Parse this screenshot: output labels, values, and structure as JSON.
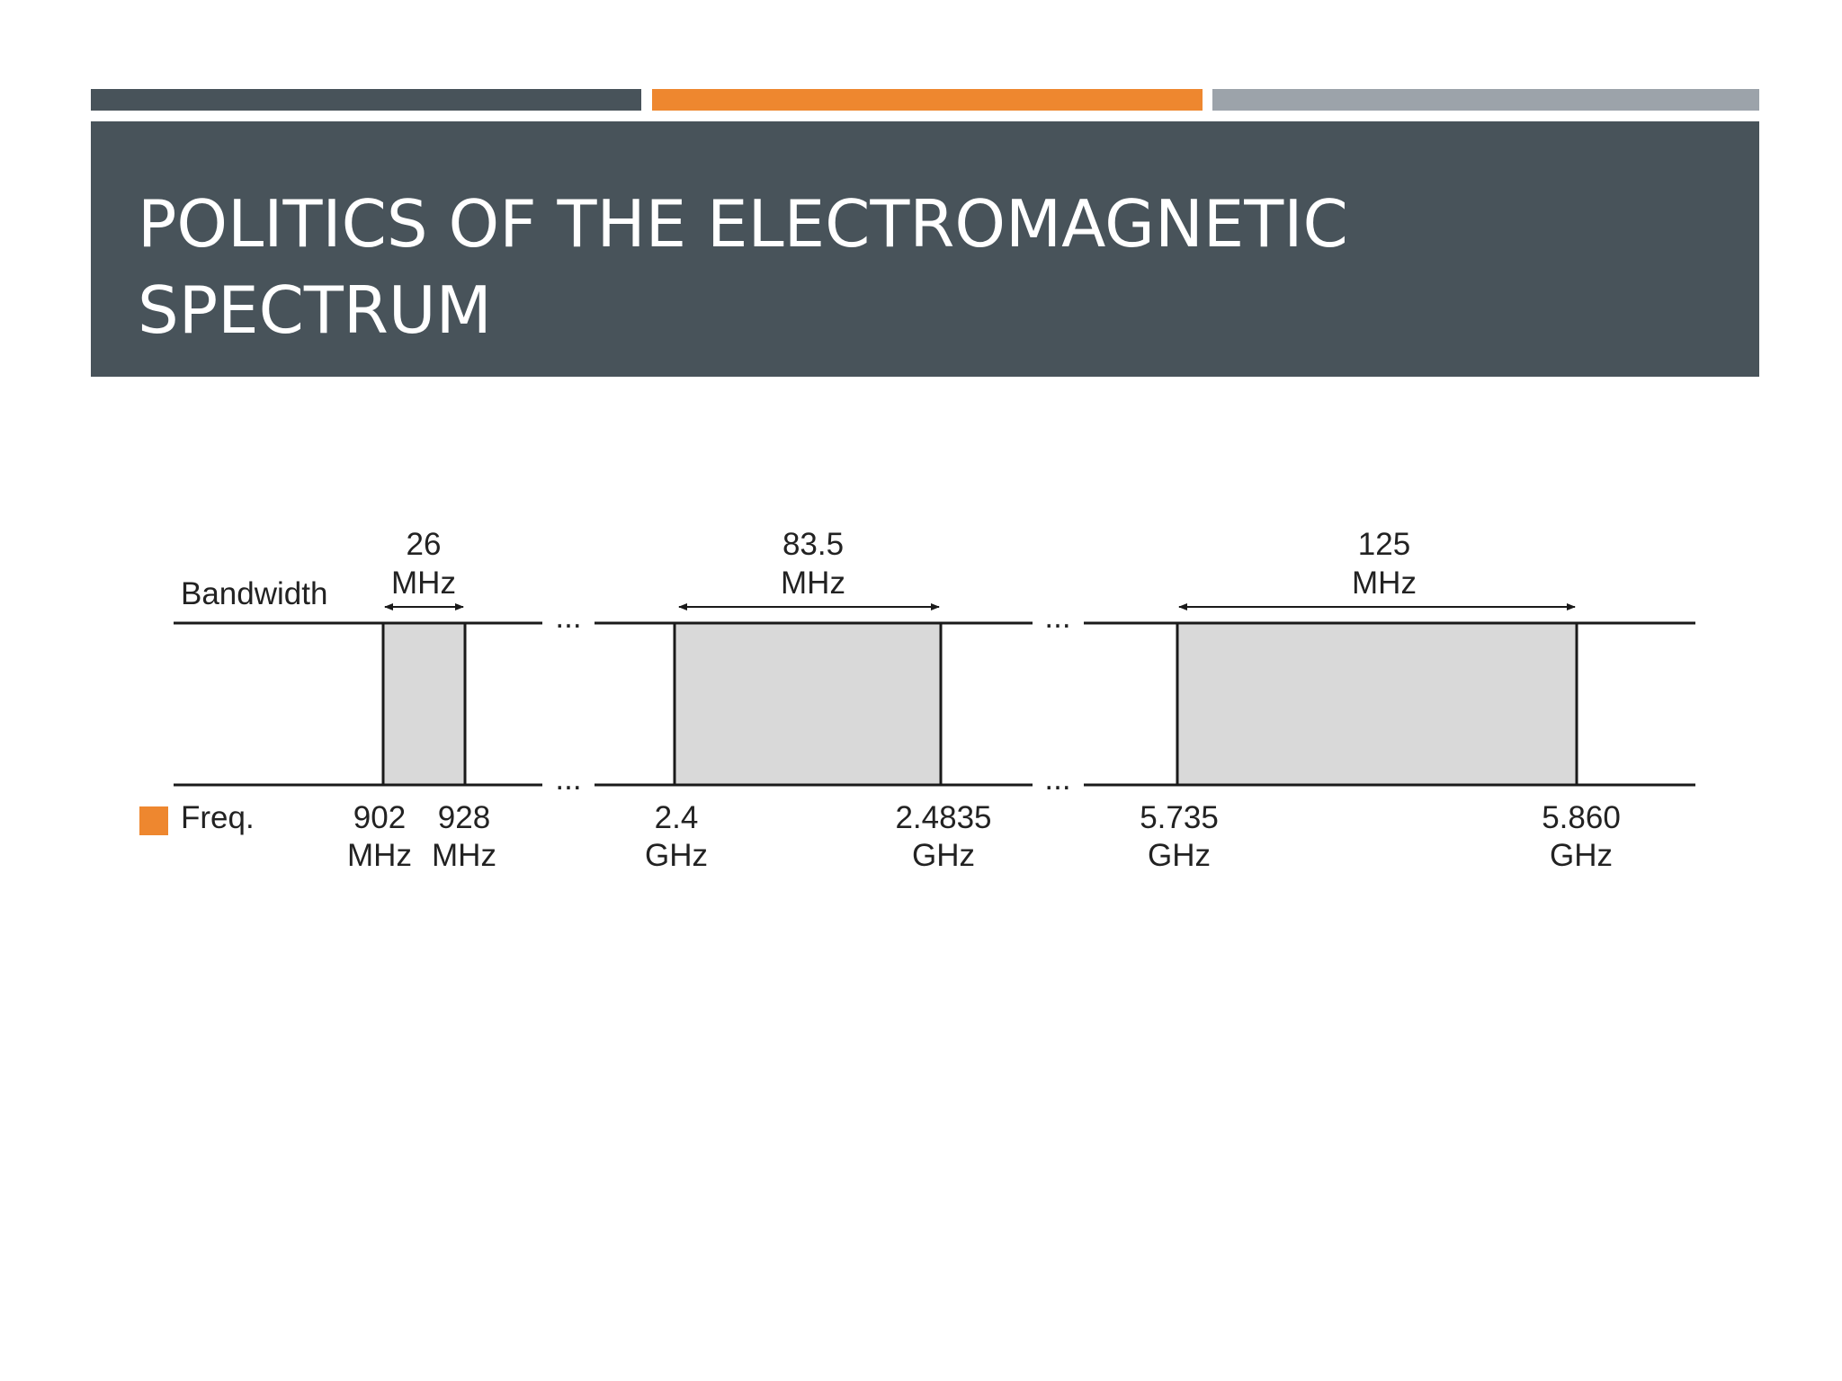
{
  "header": {
    "title": "POLITICS OF THE ELECTROMAGNETIC SPECTRUM"
  },
  "colors": {
    "dark_slate": "#48535a",
    "accent_orange": "#ee872f",
    "light_gray": "#9ca3aa",
    "band_fill": "#d9d9d9",
    "line": "#1a1a1a"
  },
  "diagram": {
    "row_labels": {
      "bandwidth": "Bandwidth",
      "frequency": "Freq."
    },
    "ellipsis": "...",
    "bands": [
      {
        "bandwidth": "26",
        "bandwidth_unit": "MHz",
        "start": "902",
        "start_unit": "MHz",
        "end": "928",
        "end_unit": "MHz"
      },
      {
        "bandwidth": "83.5",
        "bandwidth_unit": "MHz",
        "start": "2.4",
        "start_unit": "GHz",
        "end": "2.4835",
        "end_unit": "GHz"
      },
      {
        "bandwidth": "125",
        "bandwidth_unit": "MHz",
        "start": "5.735",
        "start_unit": "GHz",
        "end": "5.860",
        "end_unit": "GHz"
      }
    ]
  }
}
